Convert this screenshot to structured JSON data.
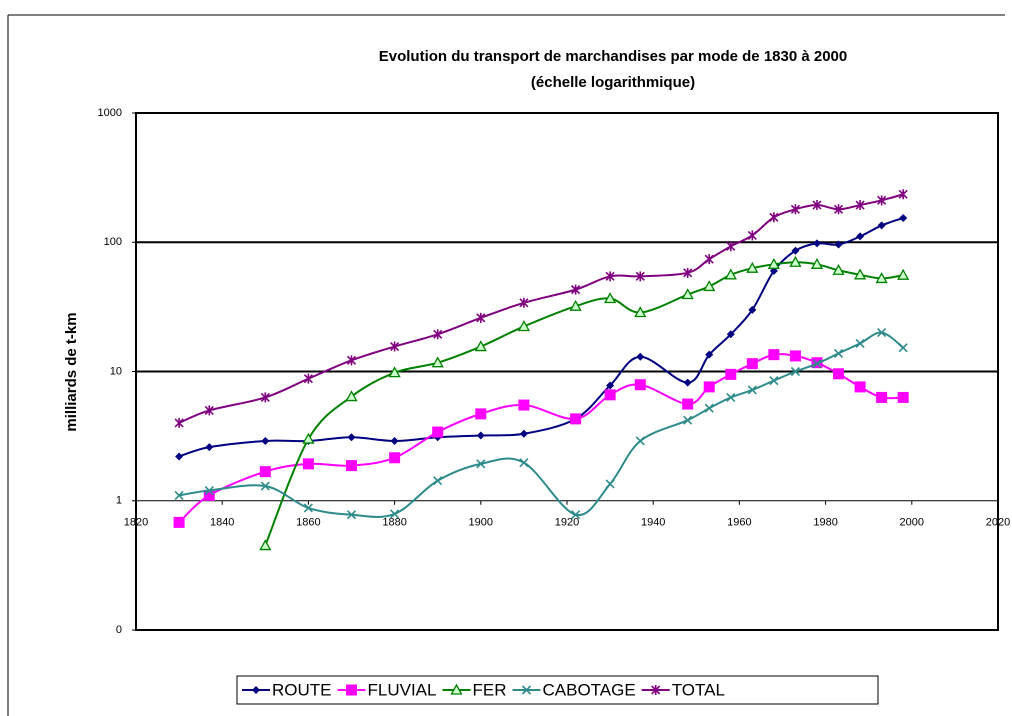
{
  "chart_data": {
    "type": "line",
    "title": "Evolution du transport de marchandises par mode de 1830 à 2000",
    "subtitle": "(échelle logarithmique)",
    "y_label": "milliards de t-km",
    "x": [
      1830,
      1837,
      1850,
      1860,
      1870,
      1880,
      1890,
      1900,
      1910,
      1922,
      1930,
      1937,
      1948,
      1953,
      1958,
      1963,
      1968,
      1973,
      1978,
      1983,
      1988,
      1993,
      1998
    ],
    "series": [
      {
        "name": "ROUTE",
        "color": "#000080",
        "marker": "diamond",
        "values": [
          2.2,
          2.6,
          2.9,
          2.9,
          3.1,
          2.9,
          3.1,
          3.2,
          3.3,
          4.3,
          7.8,
          13,
          8.2,
          13.5,
          19.4,
          30,
          60,
          86,
          98,
          96,
          111,
          135,
          154
        ]
      },
      {
        "name": "FLUVIAL",
        "color": "#ff00ff",
        "marker": "square",
        "values": [
          0.68,
          1.1,
          1.68,
          1.93,
          1.87,
          2.15,
          3.4,
          4.7,
          5.5,
          4.3,
          6.6,
          7.9,
          5.6,
          7.6,
          9.5,
          11.5,
          13.5,
          13.2,
          11.7,
          9.6,
          7.6,
          6.3,
          6.3
        ]
      },
      {
        "name": "FER",
        "color": "#008000",
        "marker": "triangle",
        "values": [
          null,
          null,
          0.45,
          3.0,
          6.4,
          9.8,
          11.7,
          15.6,
          22.3,
          32,
          36.7,
          28.6,
          39.4,
          45.5,
          56,
          63,
          67.5,
          70,
          67.5,
          60.7,
          56,
          52.5,
          55.6
        ]
      },
      {
        "name": "CABOTAGE",
        "color": "#2e8b8b",
        "marker": "x",
        "values": [
          1.1,
          1.2,
          1.3,
          0.88,
          0.78,
          0.79,
          1.43,
          1.93,
          1.97,
          0.78,
          1.35,
          2.9,
          4.2,
          5.2,
          6.3,
          7.2,
          8.5,
          10,
          11.5,
          13.8,
          16.5,
          20,
          15.3
        ]
      },
      {
        "name": "TOTAL",
        "color": "#800080",
        "marker": "star",
        "values": [
          4.0,
          5.0,
          6.3,
          8.8,
          12.2,
          15.6,
          19.4,
          26,
          34,
          43,
          54.5,
          54.5,
          58,
          74,
          93,
          113,
          156,
          180,
          194,
          180,
          194,
          211,
          235
        ]
      }
    ],
    "xlim": [
      1820,
      2020
    ],
    "xticks": [
      1820,
      1840,
      1860,
      1880,
      1900,
      1920,
      1940,
      1960,
      1980,
      2000,
      2020
    ],
    "ylim": [
      0.1,
      1000
    ],
    "yticks": [
      {
        "value": 0.1,
        "label": "0"
      },
      1,
      10,
      100,
      1000
    ],
    "log_y": true,
    "grid": true,
    "xaxis_crosses": 1,
    "legend": "bottom"
  }
}
